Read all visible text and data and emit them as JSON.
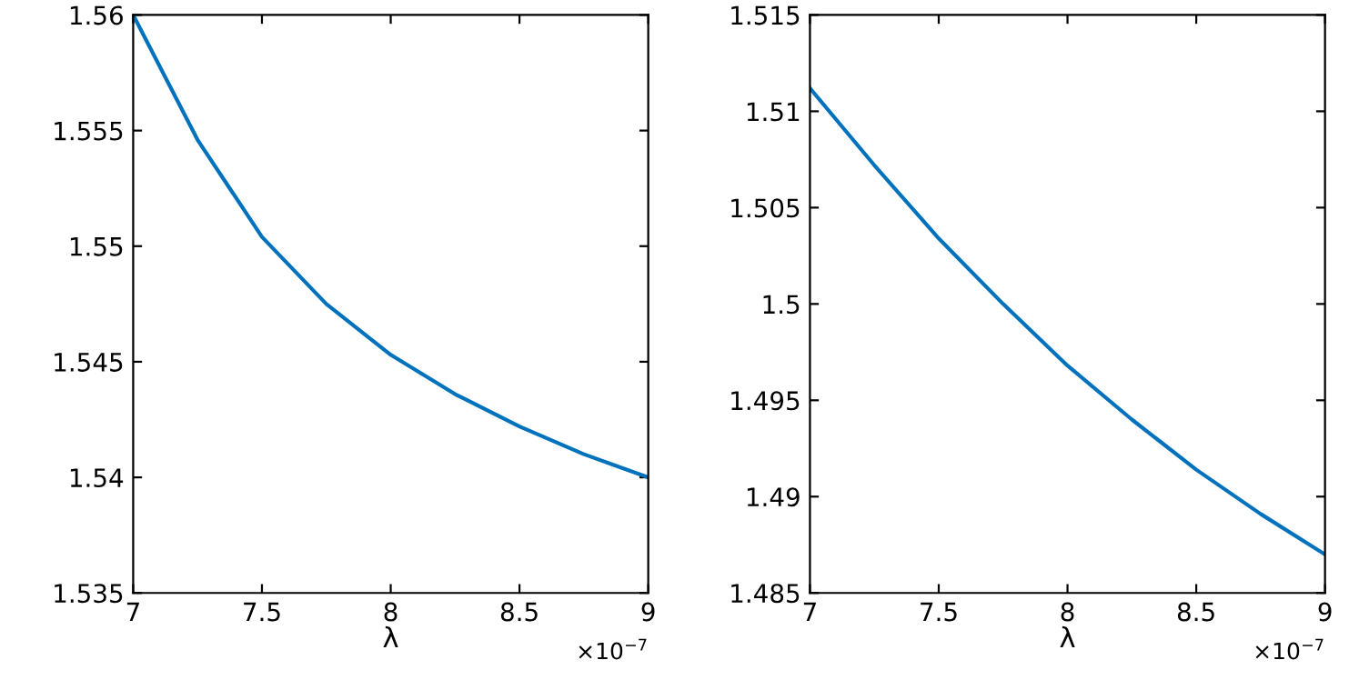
{
  "chart_data": [
    {
      "type": "line",
      "xlabel": "λ",
      "annotations": [
        "×10$^{−7}$"
      ],
      "x": [
        7.0,
        7.25,
        7.5,
        7.75,
        8.0,
        8.25,
        8.5,
        8.75,
        9.0
      ],
      "series": [
        {
          "color": "#0072bd",
          "values": [
            1.56,
            1.5546,
            1.5504,
            1.5475,
            1.5453,
            1.5436,
            1.5422,
            1.541,
            1.54
          ]
        }
      ],
      "xlim": [
        7,
        9
      ],
      "xticks": [
        7,
        7.5,
        8,
        8.5,
        9
      ],
      "ylim": [
        1.535,
        1.56
      ],
      "yticks": [
        1.535,
        1.54,
        1.545,
        1.55,
        1.555,
        1.56
      ],
      "grid": false,
      "legend": false
    },
    {
      "type": "line",
      "xlabel": "λ",
      "annotations": [
        "×10$^{−7}$"
      ],
      "x": [
        7.0,
        7.25,
        7.5,
        7.75,
        8.0,
        8.25,
        8.5,
        8.75,
        9.0
      ],
      "series": [
        {
          "color": "#0072bd",
          "values": [
            1.5112,
            1.5072,
            1.5034,
            1.5,
            1.4968,
            1.494,
            1.4914,
            1.4891,
            1.487
          ]
        }
      ],
      "xlim": [
        7,
        9
      ],
      "xticks": [
        7,
        7.5,
        8,
        8.5,
        9
      ],
      "ylim": [
        1.485,
        1.515
      ],
      "yticks": [
        1.485,
        1.49,
        1.495,
        1.5,
        1.505,
        1.51,
        1.515
      ],
      "grid": false,
      "legend": false
    }
  ]
}
